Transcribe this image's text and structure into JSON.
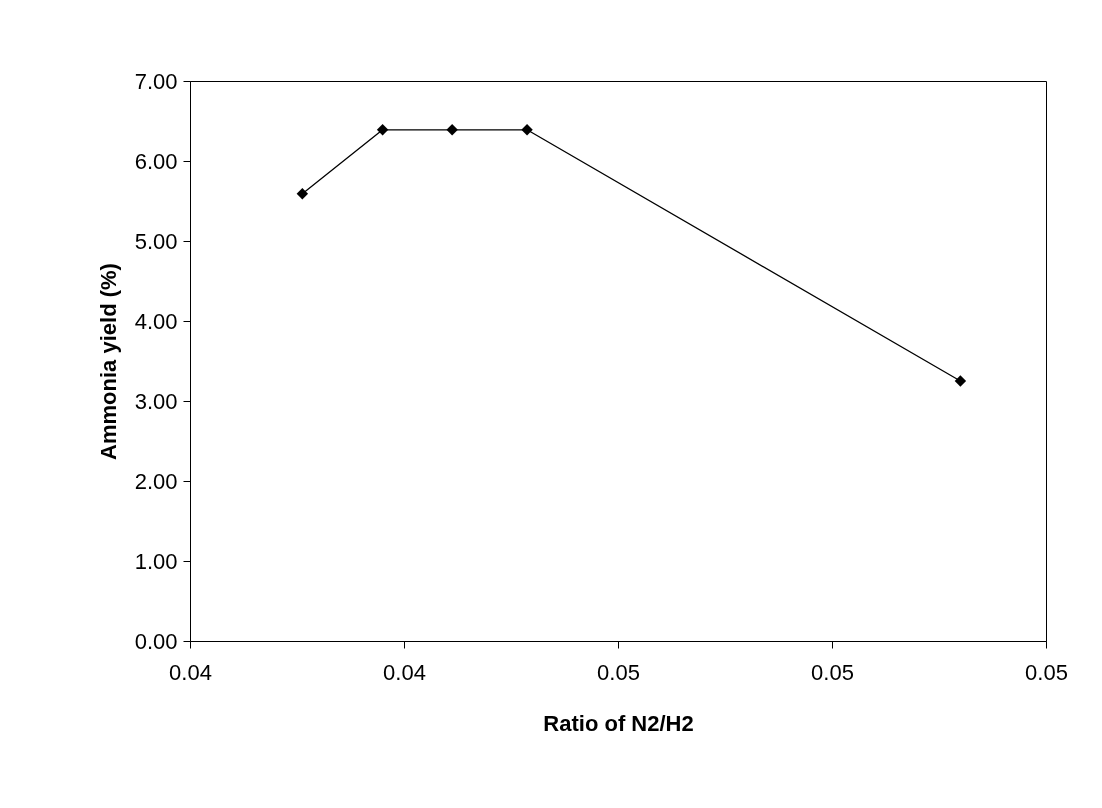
{
  "chart_data": {
    "type": "line",
    "xlabel": "Ratio of N2/H2",
    "ylabel": "Ammonia yield (%)",
    "x": [
      0.0401,
      0.0416,
      0.0429,
      0.0443,
      0.0524
    ],
    "series": [
      {
        "color": "#000000",
        "values": [
          5.59,
          6.39,
          6.39,
          6.39,
          3.25
        ]
      }
    ],
    "xlim": [
      0.038,
      0.054
    ],
    "xticks": [
      {
        "value": 0.038,
        "label": "0.04"
      },
      {
        "value": 0.042,
        "label": "0.04"
      },
      {
        "value": 0.046,
        "label": "0.05"
      },
      {
        "value": 0.05,
        "label": "0.05"
      },
      {
        "value": 0.054,
        "label": "0.05"
      }
    ],
    "ylim": [
      0,
      7
    ],
    "yticks": [
      {
        "value": 0,
        "label": "0.00"
      },
      {
        "value": 1,
        "label": "1.00"
      },
      {
        "value": 2,
        "label": "2.00"
      },
      {
        "value": 3,
        "label": "3.00"
      },
      {
        "value": 4,
        "label": "4.00"
      },
      {
        "value": 5,
        "label": "5.00"
      },
      {
        "value": 6,
        "label": "6.00"
      },
      {
        "value": 7,
        "label": "7.00"
      }
    ],
    "grid": false,
    "marker": "diamond",
    "line_style": "solid"
  }
}
